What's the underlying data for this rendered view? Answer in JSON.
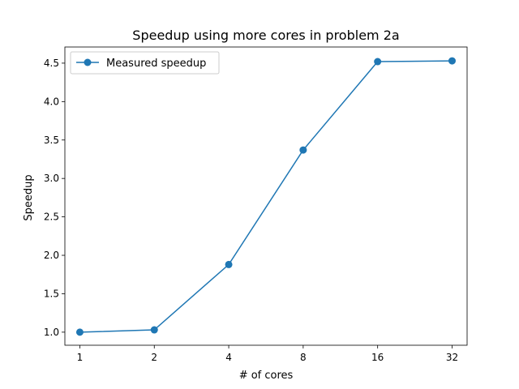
{
  "chart_data": {
    "type": "line",
    "title": "Speedup using more cores in problem 2a",
    "xlabel": "# of cores",
    "ylabel": "Speedup",
    "x_scale": "log2",
    "categories": [
      "1",
      "2",
      "4",
      "8",
      "16",
      "32"
    ],
    "x": [
      1,
      2,
      4,
      8,
      16,
      32
    ],
    "xlim": [
      0.87,
      36.8
    ],
    "ylim": [
      0.83,
      4.71
    ],
    "y_ticks": [
      "1.0",
      "1.5",
      "2.0",
      "2.5",
      "3.0",
      "3.5",
      "4.0",
      "4.5"
    ],
    "series": [
      {
        "name": "Measured speedup",
        "values": [
          1.0,
          1.03,
          1.88,
          3.37,
          4.52,
          4.53
        ],
        "color": "#1f77b4",
        "marker": "circle"
      }
    ],
    "legend": "top-left",
    "grid": false
  }
}
